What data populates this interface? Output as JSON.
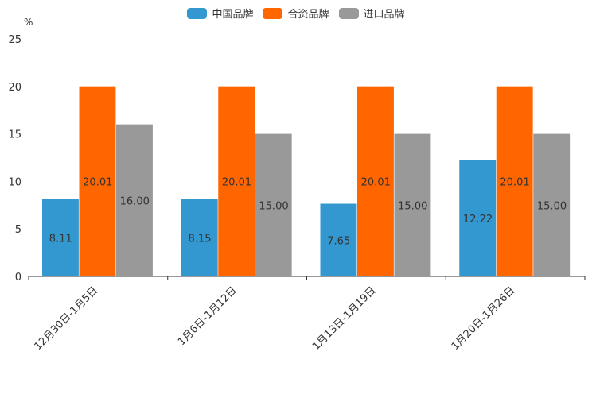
{
  "unit_label": "%",
  "legend": [
    {
      "label": "中国品牌",
      "color": "#3398d0"
    },
    {
      "label": "合资品牌",
      "color": "#ff6600"
    },
    {
      "label": "进口品牌",
      "color": "#999999"
    }
  ],
  "chart_data": {
    "type": "bar",
    "categories": [
      "12月30日-1月5日",
      "1月6日-1月12日",
      "1月13日-1月19日",
      "1月20日-1月26日"
    ],
    "series": [
      {
        "name": "中国品牌",
        "values": [
          8.11,
          8.15,
          7.65,
          12.22
        ],
        "labels": [
          "8.11",
          "8.15",
          "7.65",
          "12.22"
        ]
      },
      {
        "name": "合资品牌",
        "values": [
          20.01,
          20.01,
          20.01,
          20.01
        ],
        "labels": [
          "20.01",
          "20.01",
          "20.01",
          "20.01"
        ]
      },
      {
        "name": "进口品牌",
        "values": [
          16.0,
          15.0,
          15.0,
          15.0
        ],
        "labels": [
          "16.00",
          "15.00",
          "15.00",
          "15.00"
        ]
      }
    ],
    "ylabel": "%",
    "ylim": [
      0,
      25
    ],
    "yticks": [
      0,
      5,
      10,
      15,
      20,
      25
    ],
    "ytick_labels": [
      "0",
      "5",
      "10",
      "15",
      "20",
      "25"
    ],
    "grid": false,
    "legend_position": "top-center"
  }
}
